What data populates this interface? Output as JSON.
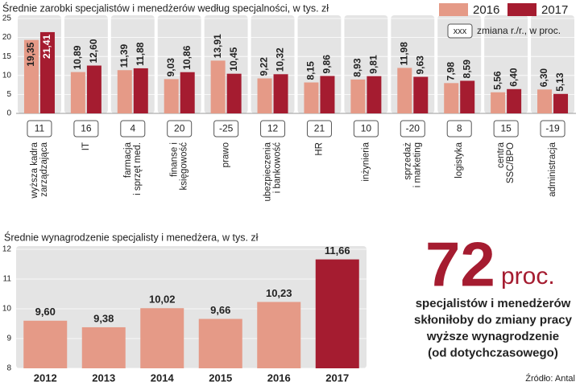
{
  "chart_data": [
    {
      "type": "grouped-bar",
      "title": "Średnie zarobki specjalistów i menedżerów według specjalności, w tys. zł",
      "categories": [
        [
          "wyższa kadra",
          "zarządzająca"
        ],
        [
          "IT"
        ],
        [
          "farmacja",
          "i sprzęt med."
        ],
        [
          "finanse i",
          "księgowość"
        ],
        [
          "prawo"
        ],
        [
          "ubezpieczenia",
          "i bankowość"
        ],
        [
          "HR"
        ],
        [
          "inżynieria"
        ],
        [
          "sprzedaż",
          "i marketing"
        ],
        [
          "logistyka"
        ],
        [
          "centra",
          "SSC/BPO"
        ],
        [
          "administracja"
        ]
      ],
      "series": [
        {
          "name": "2016",
          "color": "#e59a87",
          "values": [
            19.35,
            10.89,
            11.39,
            9.03,
            13.91,
            9.22,
            8.15,
            8.93,
            11.98,
            7.98,
            5.56,
            6.3
          ],
          "value_labels": [
            "19,35",
            "10,89",
            "11,39",
            "9,03",
            "13,91",
            "9,22",
            "8,15",
            "8,93",
            "11,98",
            "7,98",
            "5,56",
            "6,30"
          ]
        },
        {
          "name": "2017",
          "color": "#a51c30",
          "values": [
            21.41,
            12.6,
            11.88,
            10.86,
            10.45,
            10.32,
            9.86,
            9.81,
            9.63,
            8.59,
            6.4,
            5.13
          ],
          "value_labels": [
            "21,41",
            "12,60",
            "11,88",
            "10,86",
            "10,45",
            "10,32",
            "9,86",
            "9,81",
            "9,63",
            "8,59",
            "6,40",
            "5,13"
          ]
        }
      ],
      "changes": [
        11,
        16,
        4,
        20,
        -25,
        12,
        21,
        10,
        -20,
        8,
        15,
        -19
      ],
      "change_legend": {
        "sample": "xxx",
        "label": "zmiana r./r., w proc."
      },
      "ylim": [
        0,
        25
      ],
      "yticks": [
        0,
        5,
        10,
        15,
        20,
        25
      ],
      "grid": true
    },
    {
      "type": "bar",
      "title": "Średnie wynagrodzenie specjalisty i menedżera, w tys. zł",
      "categories": [
        "2012",
        "2013",
        "2014",
        "2015",
        "2016",
        "2017"
      ],
      "values": [
        9.6,
        9.38,
        10.02,
        9.66,
        10.23,
        11.66
      ],
      "value_labels": [
        "9,60",
        "9,38",
        "10,02",
        "9,66",
        "10,23",
        "11,66"
      ],
      "colors": [
        "#e59a87",
        "#e59a87",
        "#e59a87",
        "#e59a87",
        "#e59a87",
        "#a51c30"
      ],
      "ylim": [
        8,
        12
      ],
      "yticks": [
        8,
        9,
        10,
        11,
        12
      ],
      "grid": true
    }
  ],
  "callout": {
    "value": 72,
    "unit": "proc.",
    "lines": [
      "specjalistów i menedżerów",
      "skłoniłoby do zmiany pracy",
      "wyższe wynagrodzenie",
      "(od dotychczasowego)"
    ]
  },
  "source": "Źródło: Antal"
}
